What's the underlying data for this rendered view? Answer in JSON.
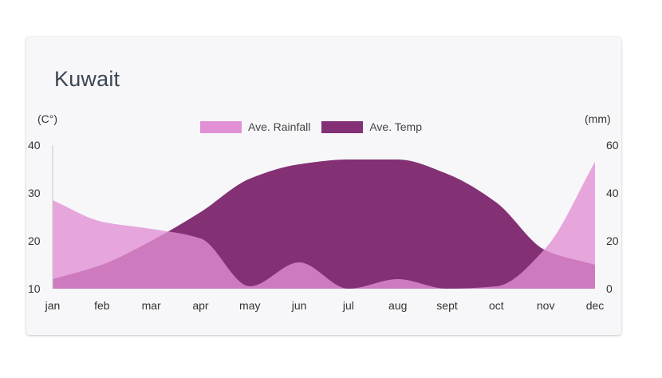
{
  "card": {
    "title": "Kuwait"
  },
  "chart_data": {
    "type": "area",
    "title": "Kuwait",
    "categories": [
      "jan",
      "feb",
      "mar",
      "apr",
      "may",
      "jun",
      "jul",
      "aug",
      "sept",
      "oct",
      "nov",
      "dec"
    ],
    "y_left": {
      "label": "(C°)",
      "range": [
        10,
        40
      ],
      "ticks": [
        40,
        30,
        20,
        10
      ]
    },
    "y_right": {
      "label": "(mm)",
      "range": [
        0,
        60
      ],
      "ticks": [
        60,
        40,
        20,
        0
      ]
    },
    "legend_position": "top-center",
    "series": [
      {
        "name": "Ave. Rainfall",
        "axis": "right",
        "color": "#e190d3",
        "values": [
          37,
          28,
          25,
          21,
          1,
          11,
          0,
          4,
          0,
          1,
          17,
          53
        ]
      },
      {
        "name": "Ave. Temp",
        "axis": "left",
        "color": "#833074",
        "values": [
          12,
          15,
          20,
          26,
          33,
          36,
          37,
          37,
          34,
          28,
          18,
          15
        ]
      }
    ]
  }
}
